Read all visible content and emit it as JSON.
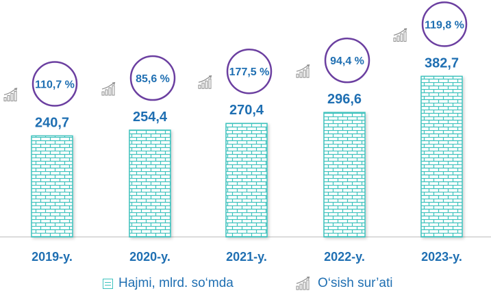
{
  "chart_data": {
    "type": "bar",
    "categories": [
      "2019-y.",
      "2020-y.",
      "2021-y.",
      "2022-y.",
      "2023-y."
    ],
    "series": [
      {
        "name": "Hajmi, mlrd. so‘mda",
        "values": [
          240.7,
          254.4,
          270.4,
          296.6,
          382.7
        ]
      }
    ],
    "value_labels": [
      "240,7",
      "254,4",
      "270,4",
      "296,6",
      "382,7"
    ],
    "growth_series": {
      "name": "O‘sish sur’ati",
      "values": [
        110.7,
        85.6,
        177.5,
        94.4,
        119.8
      ],
      "labels": [
        "110,7 %",
        "85,6 %",
        "177,5 %",
        "94,4 %",
        "119,8 %"
      ]
    },
    "ylim": [
      0,
      400
    ],
    "grid": false,
    "legend_position": "bottom",
    "colors": {
      "bar_fill": "#ffffff",
      "bar_brick": "#3cc2bd",
      "value_text": "#1f6fb2",
      "circle_stroke": "#6b3fa0",
      "axis": "#cfcfcf",
      "icon": "#8c8c8c"
    },
    "legend_icons": {
      "bars": "brick-pattern-swatch",
      "growth": "growth-bars-icon"
    }
  }
}
